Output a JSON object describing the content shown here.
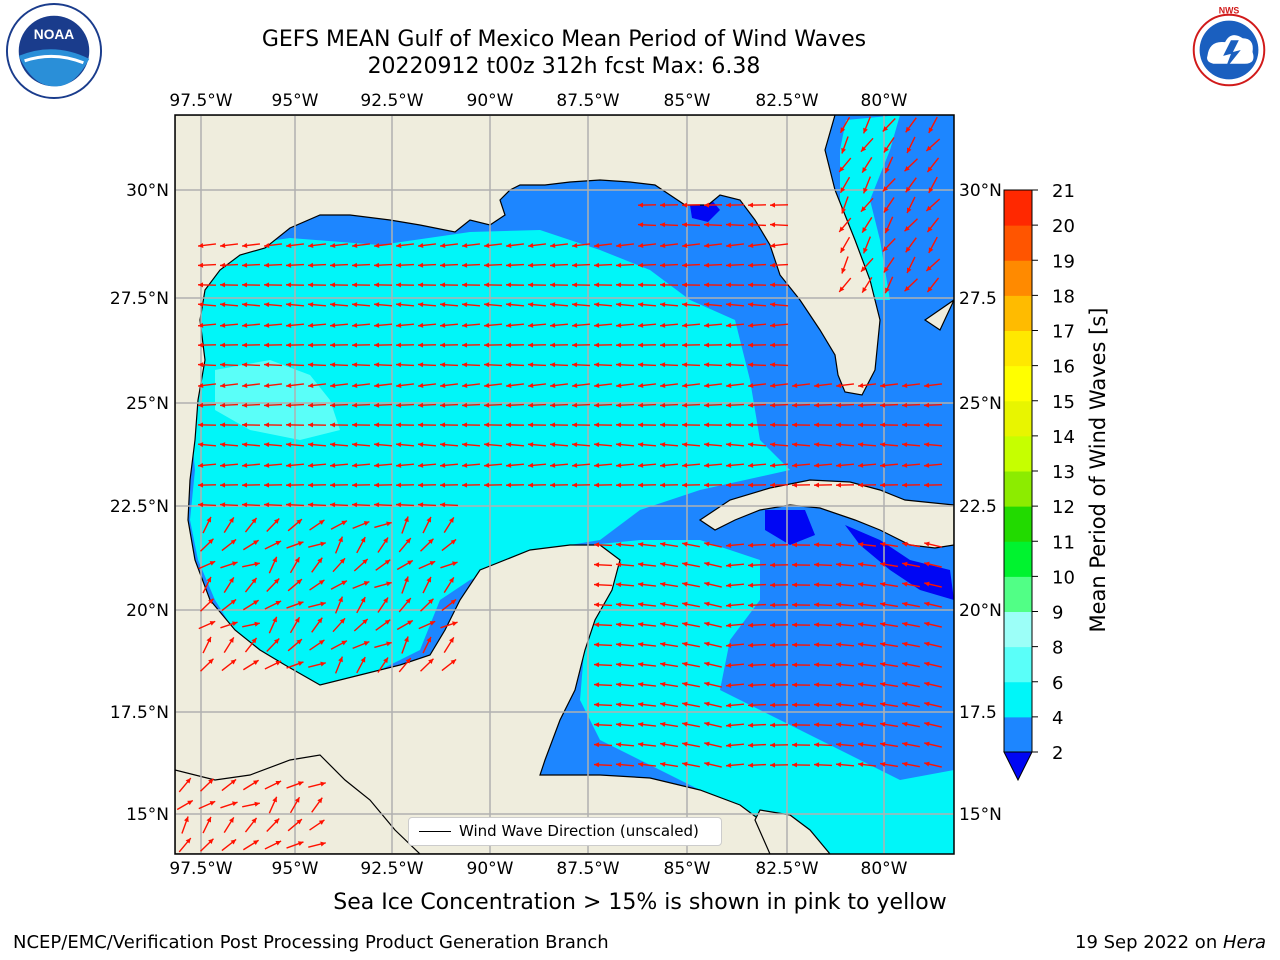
{
  "header": {
    "title_line1": "GEFS MEAN Gulf of Mexico Mean Period of Wind Waves",
    "title_line2": "20220912 t00z 312h fcst   Max: 6.38"
  },
  "logos": {
    "left": {
      "name": "noaa-logo",
      "text": "NOAA",
      "ring_text": "NATIONAL OCEANIC AND ATMOSPHERIC ADMINISTRATION · U.S. DEPARTMENT OF COMMERCE"
    },
    "right": {
      "name": "nws-logo",
      "ring_text": "NATIONAL WEATHER SERVICE"
    }
  },
  "map": {
    "lon_labels": [
      "97.5°W",
      "95°W",
      "92.5°W",
      "90°W",
      "87.5°W",
      "85°W",
      "82.5°W",
      "80°W"
    ],
    "lat_labels": [
      "30°N",
      "27.5°N",
      "25°N",
      "22.5°N",
      "20°N",
      "17.5°N",
      "15°N"
    ],
    "lat_labels_right": [
      "30°N",
      "27.5",
      "25°N",
      "22.5",
      "20°N",
      "17.5",
      "15°N"
    ],
    "legend_label": "Wind Wave Direction (unscaled)",
    "colors": {
      "land": "#efeddd",
      "ocean_2_4": "#1d86ff",
      "ocean_4_6": "#00f6f9",
      "ocean_6_8": "#5afff9",
      "deep_blue": "#0006f4",
      "arrow": "#ff1100",
      "grid": "#b0b0b0"
    }
  },
  "colorbar": {
    "label": "Mean Period of Wind Waves [s]",
    "ticks": [
      "2",
      "4",
      "6",
      "8",
      "9",
      "10",
      "11",
      "12",
      "13",
      "14",
      "15",
      "16",
      "17",
      "18",
      "19",
      "20",
      "21"
    ],
    "colors": [
      "#1d86ff",
      "#00f6f9",
      "#5afff9",
      "#9cfff8",
      "#51ff86",
      "#00f32f",
      "#22da00",
      "#8cec00",
      "#c6ff00",
      "#e8f500",
      "#ffff00",
      "#ffe800",
      "#ffbb00",
      "#ff8a00",
      "#ff5500",
      "#ff2800",
      "#ff0000"
    ],
    "extend_color": "#0006f4"
  },
  "footer": {
    "sea_ice_note": "Sea Ice Concentration > 15% is shown in pink to yellow",
    "left": "NCEP/EMC/Verification Post Processing Product Generation Branch",
    "right_date": "19 Sep 2022 on ",
    "right_host": "Hera"
  }
}
